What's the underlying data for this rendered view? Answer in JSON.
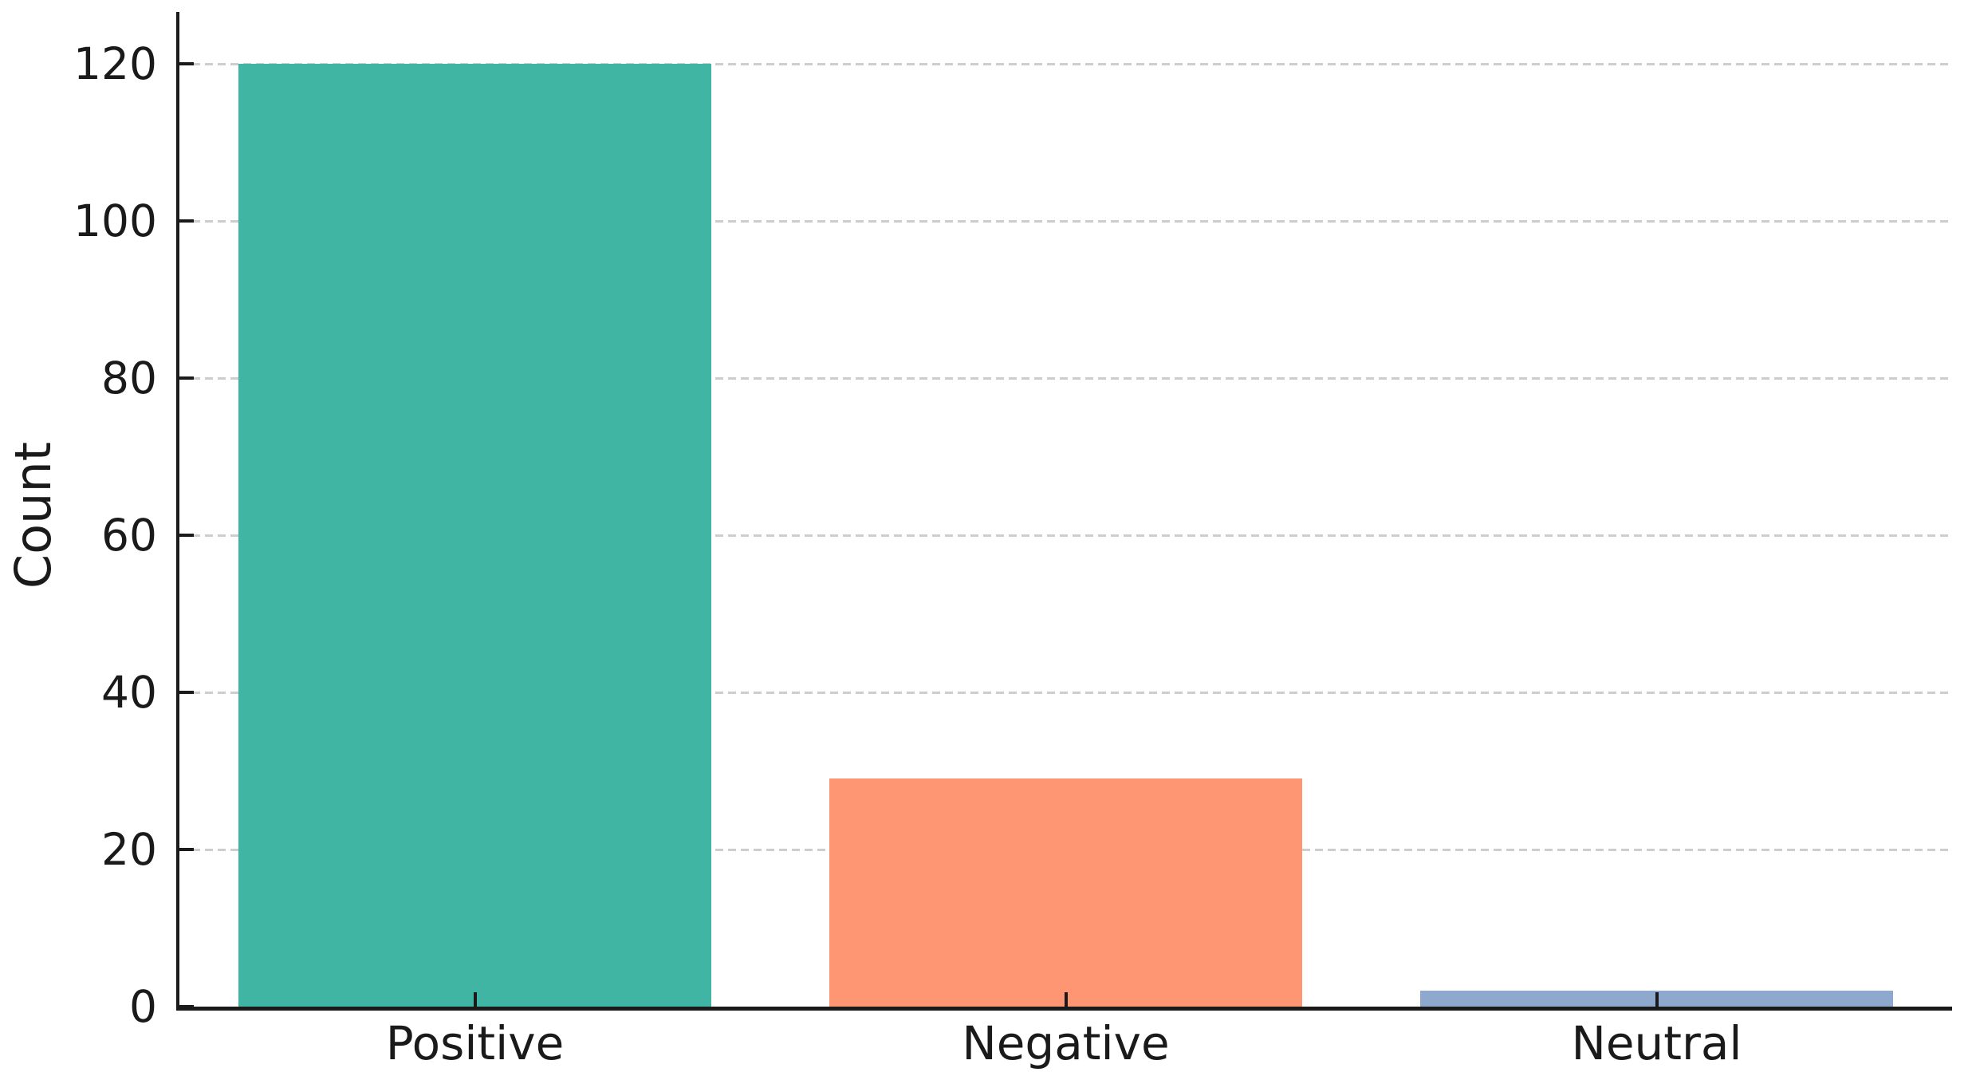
{
  "chart_data": {
    "type": "bar",
    "title": "",
    "categories": [
      "Positive",
      "Negative",
      "Neutral"
    ],
    "values": [
      120,
      29,
      2
    ],
    "bar_colors": [
      "#40b5a3",
      "#ff9673",
      "#8fa8cd"
    ],
    "xlabel": "",
    "ylabel": "Count",
    "yticks": [
      0,
      20,
      40,
      60,
      80,
      100,
      120
    ],
    "ylim": [
      0,
      126.6
    ],
    "bar_width_fraction": 0.8,
    "grid": {
      "axis": "y",
      "style": "dashed",
      "color": "#cdcdcd"
    },
    "legend": "none",
    "background_color": "#ffffff",
    "axis_color": "#1a1a1a",
    "text_color": "#1a1a1a"
  }
}
